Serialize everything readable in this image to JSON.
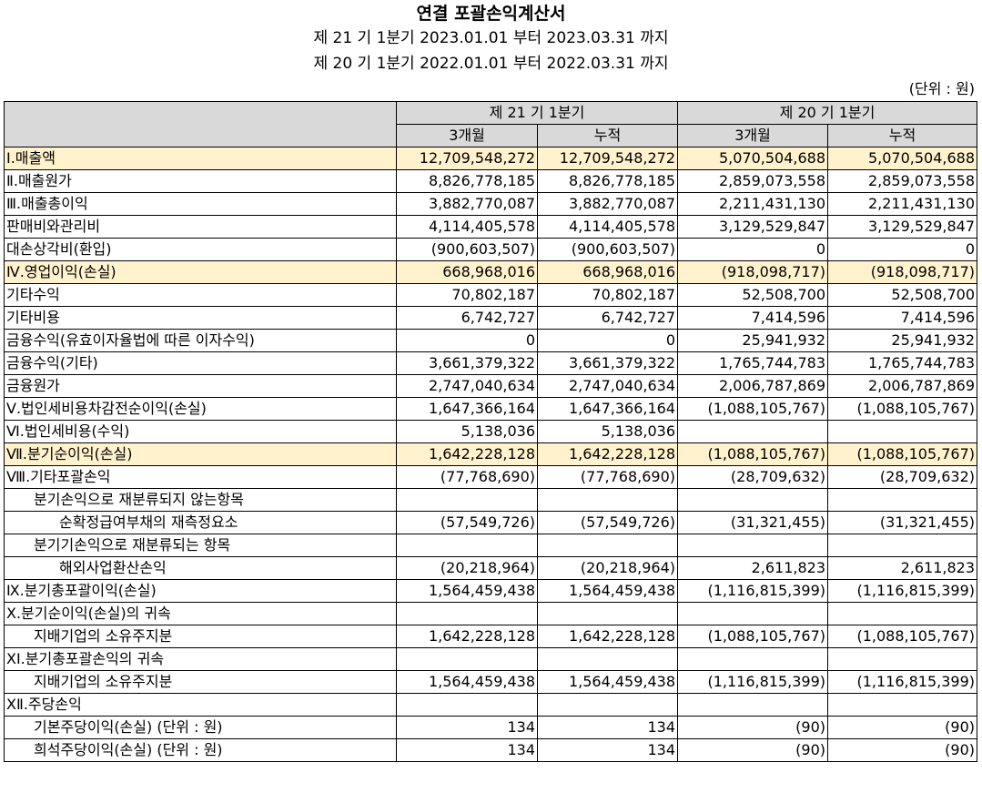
{
  "title": "연결 포괄손익계산서",
  "period1": "제 21 기 1분기 2023.01.01 부터 2023.03.31 까지",
  "period2": "제 20 기 1분기 2022.01.01 부터 2022.03.31 까지",
  "unit": "(단위 : 원)",
  "header": {
    "group1": "제 21 기 1분기",
    "group2": "제 20 기 1분기",
    "sub": [
      "3개월",
      "누적",
      "3개월",
      "누적"
    ]
  },
  "rows": [
    {
      "label": "Ⅰ.매출액",
      "values": [
        "12,709,548,272",
        "12,709,548,272",
        "5,070,504,688",
        "5,070,504,688"
      ]
    },
    {
      "label": "Ⅱ.매출원가",
      "values": [
        "8,826,778,185",
        "8,826,778,185",
        "2,859,073,558",
        "2,859,073,558"
      ]
    },
    {
      "label": "Ⅲ.매출총이익",
      "values": [
        "3,882,770,087",
        "3,882,770,087",
        "2,211,431,130",
        "2,211,431,130"
      ]
    },
    {
      "label": "판매비와관리비",
      "values": [
        "4,114,405,578",
        "4,114,405,578",
        "3,129,529,847",
        "3,129,529,847"
      ]
    },
    {
      "label": "대손상각비(환입)",
      "values": [
        "(900,603,507)",
        "(900,603,507)",
        "0",
        "0"
      ]
    },
    {
      "label": "Ⅳ.영업이익(손실)",
      "values": [
        "668,968,016",
        "668,968,016",
        "(918,098,717)",
        "(918,098,717)"
      ]
    },
    {
      "label": "기타수익",
      "values": [
        "70,802,187",
        "70,802,187",
        "52,508,700",
        "52,508,700"
      ]
    },
    {
      "label": "기타비용",
      "values": [
        "6,742,727",
        "6,742,727",
        "7,414,596",
        "7,414,596"
      ]
    },
    {
      "label": "금융수익(유효이자율법에 따른 이자수익)",
      "values": [
        "0",
        "0",
        "25,941,932",
        "25,941,932"
      ]
    },
    {
      "label": "금융수익(기타)",
      "values": [
        "3,661,379,322",
        "3,661,379,322",
        "1,765,744,783",
        "1,765,744,783"
      ]
    },
    {
      "label": "금융원가",
      "values": [
        "2,747,040,634",
        "2,747,040,634",
        "2,006,787,869",
        "2,006,787,869"
      ]
    },
    {
      "label": "Ⅴ.법인세비용차감전순이익(손실)",
      "values": [
        "1,647,366,164",
        "1,647,366,164",
        "(1,088,105,767)",
        "(1,088,105,767)"
      ]
    },
    {
      "label": "Ⅵ.법인세비용(수익)",
      "values": [
        "5,138,036",
        "5,138,036",
        "",
        ""
      ]
    },
    {
      "label": "Ⅶ.분기순이익(손실)",
      "values": [
        "1,642,228,128",
        "1,642,228,128",
        "(1,088,105,767)",
        "(1,088,105,767)"
      ]
    },
    {
      "label": "Ⅷ.기타포괄손익",
      "values": [
        "(77,768,690)",
        "(77,768,690)",
        "(28,709,632)",
        "(28,709,632)"
      ]
    },
    {
      "label": "분기손익으로 재분류되지 않는항목",
      "values": [
        "",
        "",
        "",
        ""
      ]
    },
    {
      "label": "순확정급여부채의 재측정요소",
      "values": [
        "(57,549,726)",
        "(57,549,726)",
        "(31,321,455)",
        "(31,321,455)"
      ]
    },
    {
      "label": "분기기손익으로 재분류되는 항목",
      "values": [
        "",
        "",
        "",
        ""
      ]
    },
    {
      "label": "해외사업환산손익",
      "values": [
        "(20,218,964)",
        "(20,218,964)",
        "2,611,823",
        "2,611,823"
      ]
    },
    {
      "label": "Ⅸ.분기총포괄이익(손실)",
      "values": [
        "1,564,459,438",
        "1,564,459,438",
        "(1,116,815,399)",
        "(1,116,815,399)"
      ]
    },
    {
      "label": "Ⅹ.분기순이익(손실)의 귀속",
      "values": [
        "",
        "",
        "",
        ""
      ]
    },
    {
      "label": "지배기업의 소유주지분",
      "values": [
        "1,642,228,128",
        "1,642,228,128",
        "(1,088,105,767)",
        "(1,088,105,767)"
      ]
    },
    {
      "label": "ⅩⅠ.분기총포괄손익의 귀속",
      "values": [
        "",
        "",
        "",
        ""
      ]
    },
    {
      "label": "지배기업의 소유주지분",
      "values": [
        "1,564,459,438",
        "1,564,459,438",
        "(1,116,815,399)",
        "(1,116,815,399)"
      ]
    },
    {
      "label": "ⅩⅡ.주당손익",
      "values": [
        "",
        "",
        "",
        ""
      ]
    },
    {
      "label": "기본주당이익(손실) (단위 : 원)",
      "values": [
        "134",
        "134",
        "(90)",
        "(90)"
      ]
    },
    {
      "label": "희석주당이익(손실) (단위 : 원)",
      "values": [
        "134",
        "134",
        "(90)",
        "(90)"
      ]
    }
  ]
}
